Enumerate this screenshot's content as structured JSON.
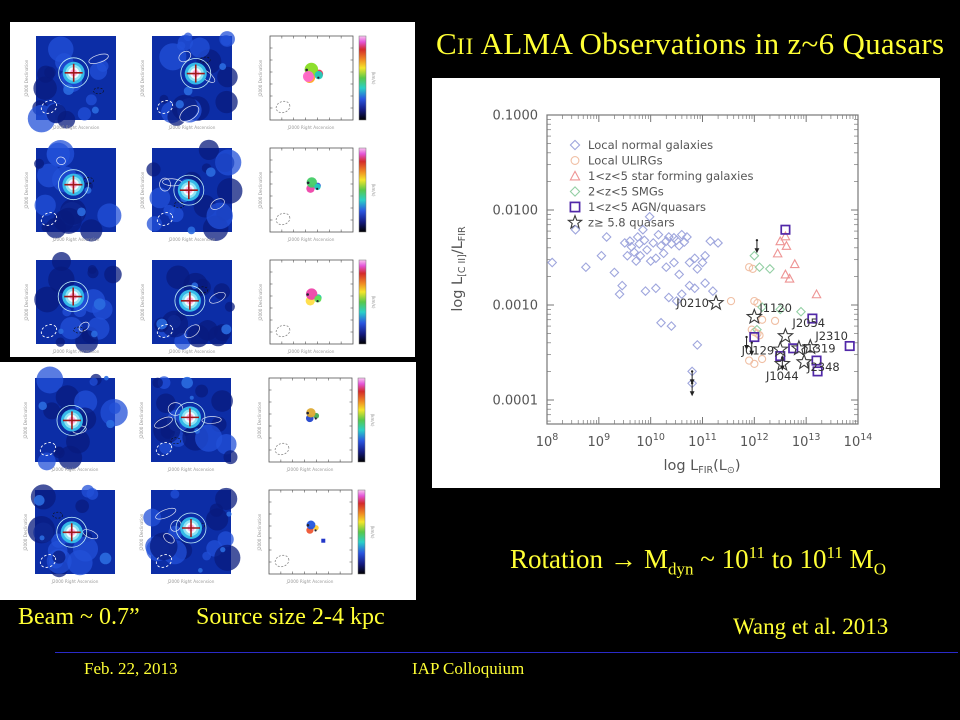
{
  "slide": {
    "bg": "#000000",
    "accent_yellow": "#ffff35",
    "title": {
      "c": "C",
      "ii": "II",
      "rest": " ALMA Observations in z~6 Quasars"
    },
    "rotation_line": {
      "pre": "Rotation",
      "arrow": "→",
      "m": "M",
      "m_sub": "dyn",
      "tilde": " ~ 10",
      "exp1": "11",
      "to": " to 10",
      "exp2": "11",
      "msun": " M",
      "msun_sub": "O"
    },
    "beam_label": "Beam ~ 0.7”",
    "source_label": "Source size 2-4 kpc",
    "credit": "Wang et al. 2013",
    "footer": {
      "date": "Feb. 22, 2013",
      "venue": "IAP Colloquium",
      "line_color": "#2a2ac8"
    }
  },
  "left_panels": {
    "x_axis_label": "J2000 Right Ascension",
    "y_axis_label": "J2000 Declination",
    "colorbar_label": "(km/s)",
    "rows": [
      {
        "card": "top",
        "palette": [
          "#ee3355",
          "#ffaa22",
          "#88dd22",
          "#22ccbb",
          "#ff66cc"
        ]
      },
      {
        "card": "top",
        "palette": [
          "#3355dd",
          "#ee44aa",
          "#44cc66",
          "#22ccbb"
        ]
      },
      {
        "card": "top",
        "palette": [
          "#22ccaa",
          "#ffdd44",
          "#ee44aa",
          "#66dd55"
        ]
      },
      {
        "card": "bottom",
        "palette": [
          "#44aa55",
          "#2244cc",
          "#ddaa33"
        ]
      },
      {
        "card": "bottom",
        "palette": [
          "#ffcc33",
          "#ee5533",
          "#2255dd"
        ]
      }
    ]
  },
  "chart_data": {
    "type": "scatter",
    "xlabel": "log L_FIR(L_⊙)",
    "ylabel": "log L_[C II]/L_FIR",
    "xlabel_parts": [
      "log L",
      "FIR",
      "(L",
      "⊙",
      ")"
    ],
    "ylabel_parts": [
      "log L",
      "[C II]",
      "/L",
      "FIR"
    ],
    "x_log_range": [
      8,
      14
    ],
    "ylim": [
      5.6e-05,
      0.1
    ],
    "x_tick_exponents": [
      8,
      9,
      10,
      11,
      12,
      13,
      14
    ],
    "y_tick_labels": [
      "0.1000",
      "0.0100",
      "0.0010",
      "0.0001"
    ],
    "y_tick_values": [
      0.1,
      0.01,
      0.001,
      0.0001
    ],
    "grid": false,
    "legend_position": "top-left",
    "series": [
      {
        "name": "Local normal galaxies",
        "symbol": "diamond",
        "color": "#9fa6dd",
        "points": [
          [
            8.1,
            0.0028
          ],
          [
            8.55,
            0.0062
          ],
          [
            8.75,
            0.0025
          ],
          [
            9.05,
            0.0033
          ],
          [
            9.15,
            0.0052
          ],
          [
            9.3,
            0.0022
          ],
          [
            9.45,
            0.0016
          ],
          [
            9.5,
            0.0045
          ],
          [
            9.55,
            0.0033
          ],
          [
            9.6,
            0.0047
          ],
          [
            9.63,
            0.0041
          ],
          [
            9.68,
            0.0036
          ],
          [
            9.72,
            0.0029
          ],
          [
            9.75,
            0.0052
          ],
          [
            9.78,
            0.0044
          ],
          [
            9.8,
            0.0033
          ],
          [
            9.85,
            0.0062
          ],
          [
            9.88,
            0.0048
          ],
          [
            9.93,
            0.0038
          ],
          [
            9.98,
            0.0085
          ],
          [
            10.0,
            0.0029
          ],
          [
            10.05,
            0.0045
          ],
          [
            10.1,
            0.0031
          ],
          [
            10.15,
            0.0055
          ],
          [
            10.2,
            0.0042
          ],
          [
            10.25,
            0.0035
          ],
          [
            10.3,
            0.0047
          ],
          [
            10.35,
            0.0052
          ],
          [
            10.4,
            0.0044
          ],
          [
            10.45,
            0.0051
          ],
          [
            10.5,
            0.0048
          ],
          [
            10.55,
            0.0042
          ],
          [
            10.6,
            0.0055
          ],
          [
            10.65,
            0.0046
          ],
          [
            10.7,
            0.0052
          ],
          [
            10.3,
            0.0025
          ],
          [
            10.45,
            0.0028
          ],
          [
            10.55,
            0.0021
          ],
          [
            10.75,
            0.0028
          ],
          [
            10.85,
            0.0031
          ],
          [
            10.9,
            0.0024
          ],
          [
            11.0,
            0.0028
          ],
          [
            11.05,
            0.0033
          ],
          [
            11.15,
            0.0047
          ],
          [
            11.3,
            0.0045
          ],
          [
            9.4,
            0.0013
          ],
          [
            9.9,
            0.0014
          ],
          [
            10.1,
            0.0015
          ],
          [
            10.35,
            0.0012
          ],
          [
            10.5,
            0.0011
          ],
          [
            10.6,
            0.0013
          ],
          [
            10.75,
            0.0016
          ],
          [
            10.85,
            0.0015
          ],
          [
            11.05,
            0.0017
          ],
          [
            11.2,
            0.0014
          ],
          [
            10.2,
            0.00065
          ],
          [
            10.4,
            0.0006
          ],
          [
            10.9,
            0.00038
          ],
          [
            10.8,
            0.0002
          ],
          [
            10.8,
            0.00015
          ]
        ]
      },
      {
        "name": "Local ULIRGs",
        "symbol": "circle",
        "color": "#f0bfa4",
        "points": [
          [
            11.55,
            0.0011
          ],
          [
            11.9,
            0.0025
          ],
          [
            11.97,
            0.0024
          ],
          [
            12.0,
            0.0011
          ],
          [
            12.06,
            0.00105
          ],
          [
            11.95,
            0.00055
          ],
          [
            12.0,
            0.00052
          ],
          [
            12.06,
            0.0005
          ],
          [
            12.1,
            0.00048
          ],
          [
            12.15,
            0.0007
          ],
          [
            11.9,
            0.00026
          ],
          [
            12.0,
            0.00024
          ],
          [
            12.15,
            0.00027
          ],
          [
            12.4,
            0.00068
          ]
        ]
      },
      {
        "name": "1<z<5 star forming galaxies",
        "symbol": "triangle",
        "color": "#ee9494",
        "points": [
          [
            12.45,
            0.0035
          ],
          [
            12.5,
            0.0047
          ],
          [
            12.6,
            0.0053
          ],
          [
            12.62,
            0.0042
          ],
          [
            12.6,
            0.0021
          ],
          [
            12.68,
            0.0019
          ],
          [
            12.78,
            0.0027
          ],
          [
            13.2,
            0.0013
          ]
        ]
      },
      {
        "name": "2<z<5 SMGs",
        "symbol": "diamond",
        "color": "#93cfa4",
        "points": [
          [
            12.0,
            0.0033
          ],
          [
            12.1,
            0.0025
          ],
          [
            12.3,
            0.0024
          ],
          [
            12.15,
            0.00095
          ],
          [
            12.9,
            0.00085
          ],
          [
            12.5,
            0.0009
          ],
          [
            12.05,
            0.00055
          ]
        ]
      },
      {
        "name": "1<z<5 AGN/quasars",
        "symbol": "square",
        "color": "#5128a8",
        "points": [
          [
            12.6,
            0.0062
          ],
          [
            13.12,
            0.00072
          ],
          [
            12.0,
            0.00046
          ],
          [
            12.5,
            0.00029
          ],
          [
            12.75,
            0.00035
          ],
          [
            13.2,
            0.00026
          ],
          [
            13.22,
            0.0002
          ],
          [
            13.84,
            0.00037
          ]
        ]
      },
      {
        "name": "z≥ 5.8 quasars",
        "symbol": "star",
        "color": "#3a3a3a",
        "points": [
          [
            11.26,
            0.00105
          ],
          [
            12.0,
            0.00075
          ],
          [
            12.6,
            0.00047
          ],
          [
            13.08,
            0.00036
          ],
          [
            12.86,
            0.00035
          ],
          [
            12.5,
            0.00034
          ],
          [
            12.54,
            0.00024
          ],
          [
            12.96,
            0.00025
          ]
        ],
        "labels": [
          {
            "text": "J0210",
            "anchor": "end",
            "dx": -7,
            "dy": 4
          },
          {
            "text": "J1120",
            "anchor": "start",
            "dx": 5,
            "dy": -5
          },
          {
            "text": "J2054",
            "anchor": "start",
            "dx": 7,
            "dy": -9
          },
          {
            "text": "J2310",
            "anchor": "start",
            "dx": 5,
            "dy": -7
          },
          {
            "text": "J1319",
            "anchor": "start",
            "dx": 4,
            "dy": 4
          },
          {
            "text": "J0129",
            "anchor": "end",
            "dx": -6,
            "dy": 5
          },
          {
            "text": "J1044",
            "anchor": "middle",
            "dx": 0,
            "dy": 16
          },
          {
            "text": "J2348",
            "anchor": "start",
            "dx": 3,
            "dy": 9
          }
        ]
      }
    ],
    "upper_limits": [
      [
        12.05,
        0.0048
      ],
      [
        11.85,
        0.00046
      ],
      [
        11.95,
        0.0004
      ],
      [
        10.8,
        0.0002
      ],
      [
        10.8,
        0.00015
      ],
      [
        12.54,
        0.00028
      ]
    ]
  }
}
